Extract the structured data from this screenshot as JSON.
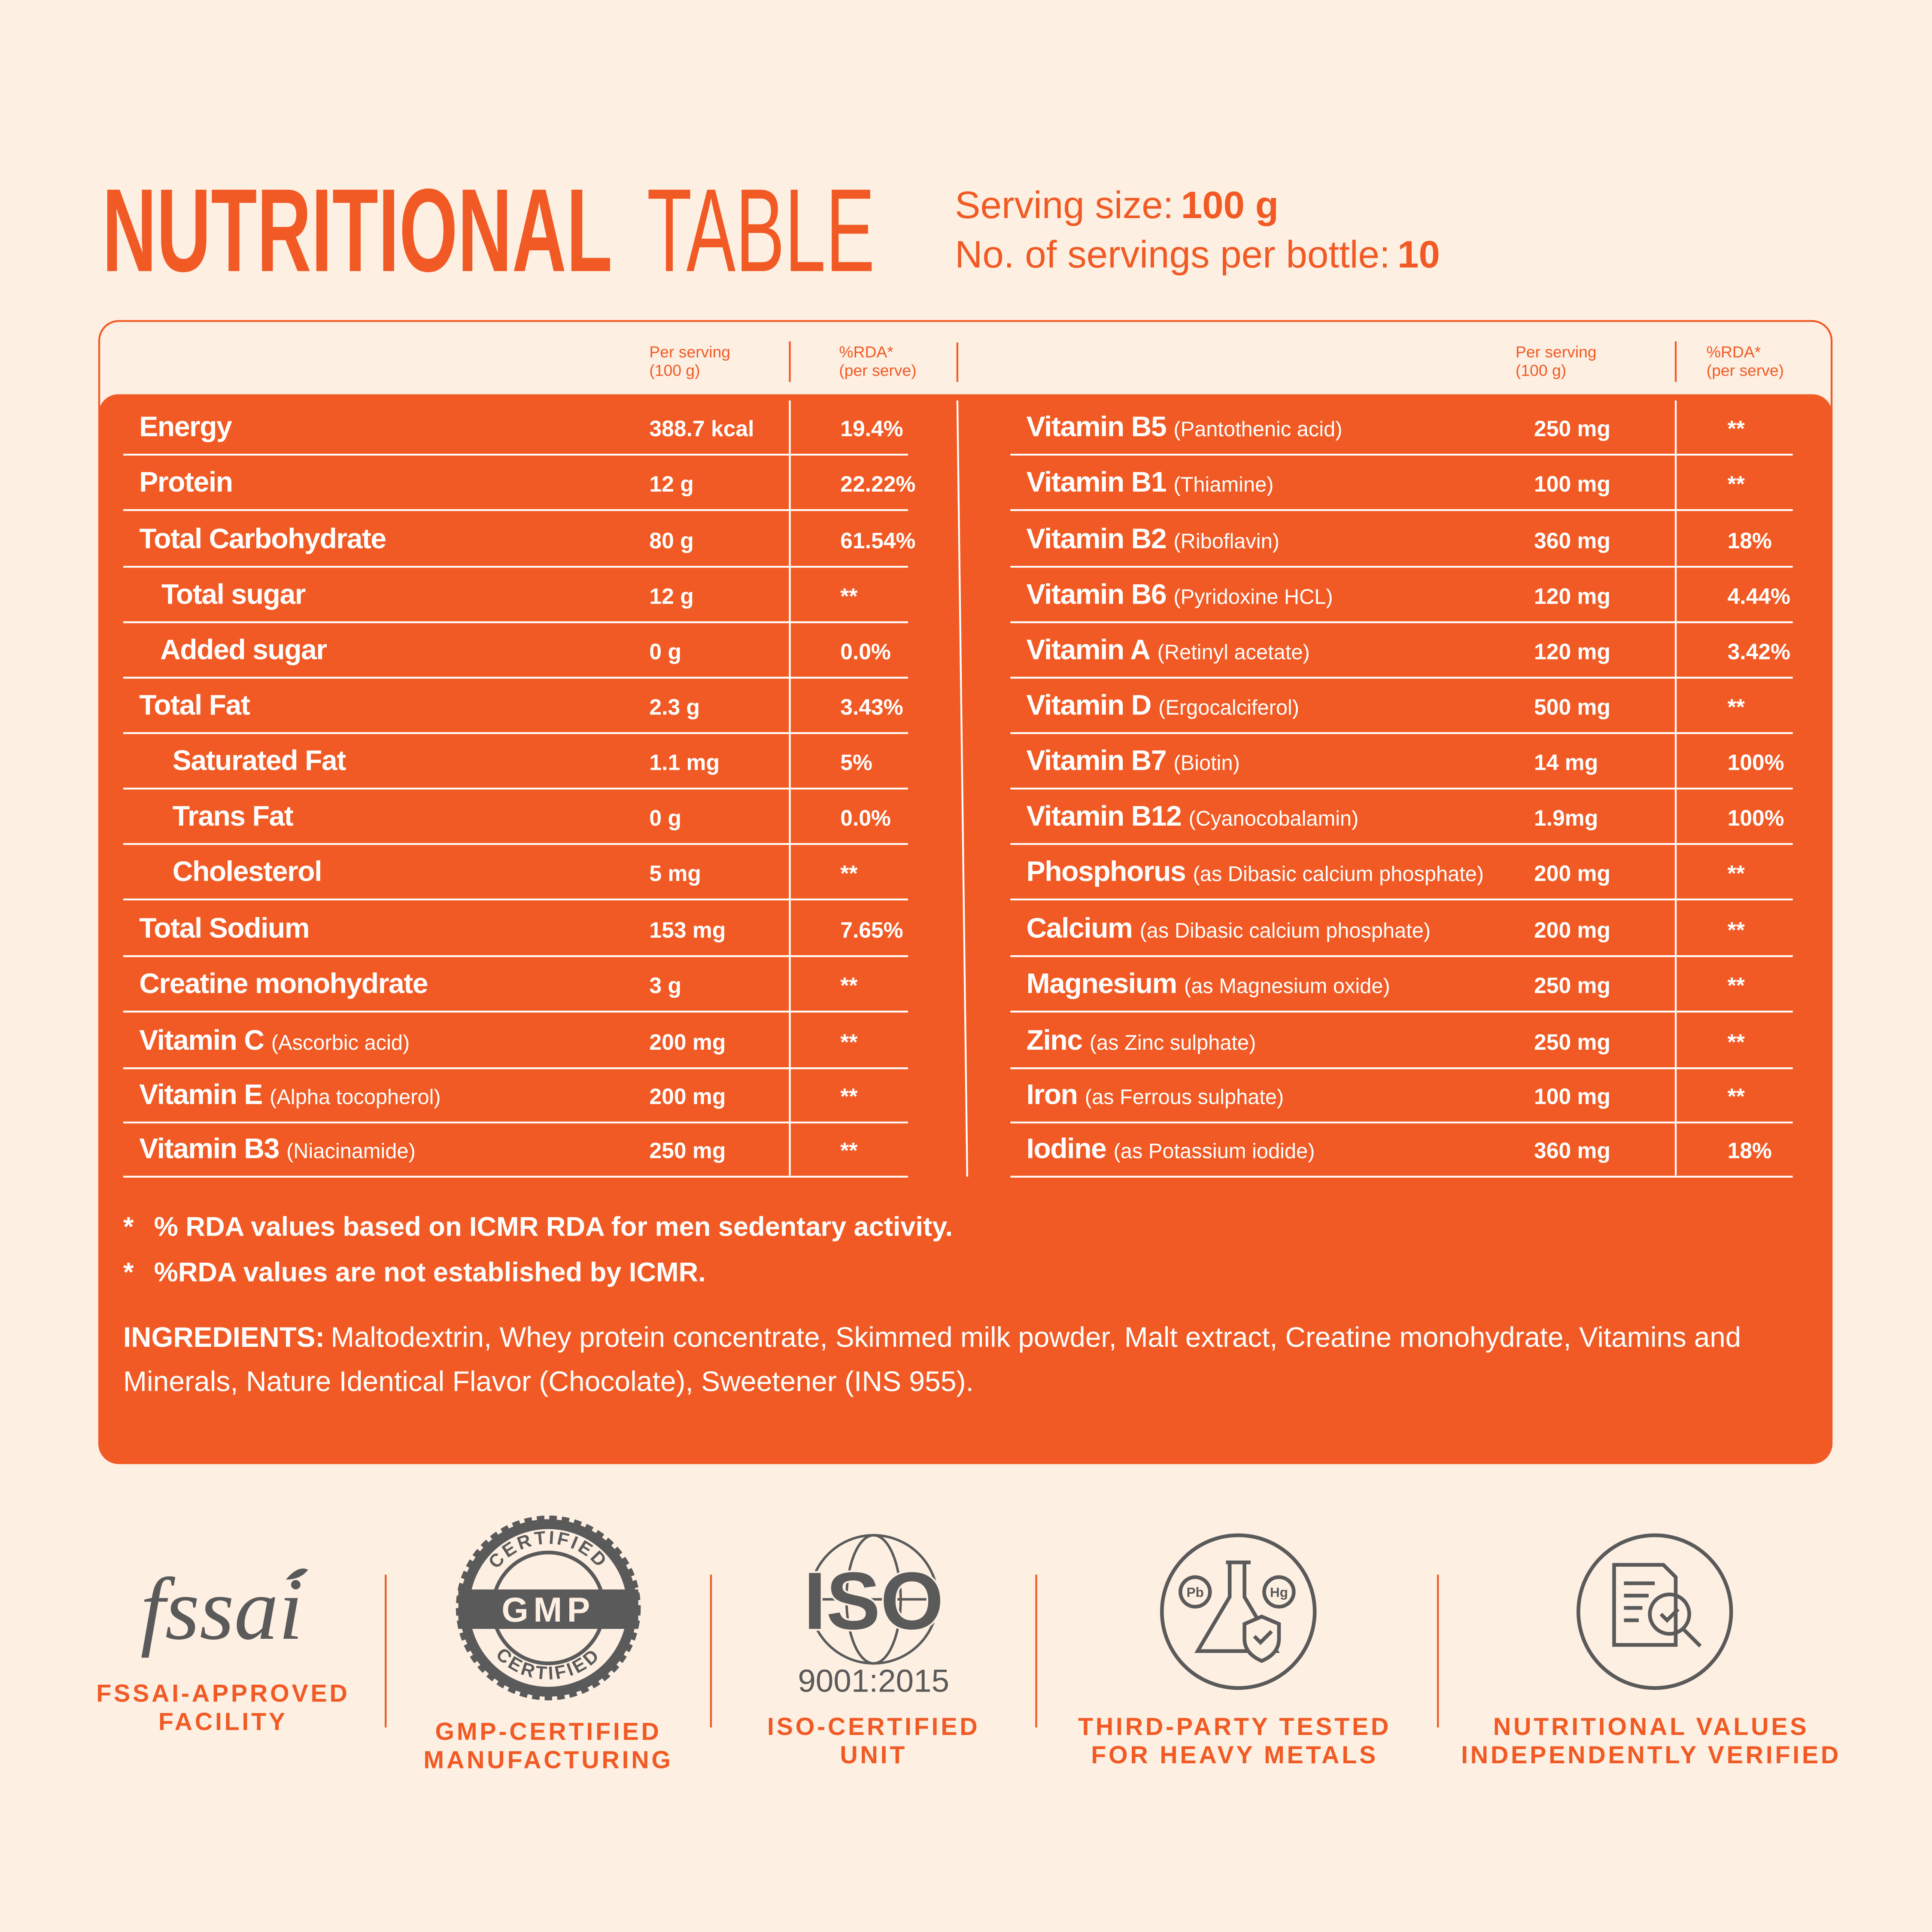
{
  "header": {
    "title_bold": "NUTRITIONAL",
    "title_light": "TABLE",
    "serving_size_label": "Serving size:",
    "serving_size": "100 g",
    "servings_label": "No. of servings per bottle:",
    "servings": "10"
  },
  "table": {
    "column_headers": {
      "per_serving": [
        "Per serving",
        "(100 g)"
      ],
      "rda": [
        "%RDA*",
        "(per serve)"
      ]
    },
    "left_rows": [
      {
        "name": "Energy",
        "amount": "388.7 kcal",
        "rda": "19.4%"
      },
      {
        "name": "Protein",
        "amount": "12 g",
        "rda": "22.22%"
      },
      {
        "name": "Total Carbohydrate",
        "amount": "80 g",
        "rda": "61.54%"
      },
      {
        "name": "Total sugar",
        "amount": "12 g",
        "rda": "**"
      },
      {
        "name": "Added sugar",
        "amount": "0 g",
        "rda": "0.0%"
      },
      {
        "name": "Total Fat",
        "amount": "2.3 g",
        "rda": "3.43%"
      },
      {
        "name": "Saturated Fat",
        "amount": "1.1 mg",
        "rda": "5%"
      },
      {
        "name": "Trans Fat",
        "amount": "0 g",
        "rda": "0.0%"
      },
      {
        "name": "Cholesterol",
        "amount": "5 mg",
        "rda": "**"
      },
      {
        "name": "Total Sodium",
        "amount": "153 mg",
        "rda": "7.65%"
      },
      {
        "name": "Creatine monohydrate",
        "amount": "3 g",
        "rda": "**"
      },
      {
        "name": "Vitamin C",
        "note": "(Ascorbic acid)",
        "amount": "200 mg",
        "rda": "**"
      },
      {
        "name": "Vitamin E",
        "note": "(Alpha tocopherol)",
        "amount": "200 mg",
        "rda": "**"
      },
      {
        "name": "Vitamin B3",
        "note": "(Niacinamide)",
        "amount": "250 mg",
        "rda": "**"
      }
    ],
    "right_rows": [
      {
        "name": "Vitamin B5",
        "note": "(Pantothenic acid)",
        "amount": "250 mg",
        "rda": "**"
      },
      {
        "name": "Vitamin B1",
        "note": "(Thiamine)",
        "amount": "100 mg",
        "rda": "**"
      },
      {
        "name": "Vitamin B2",
        "note": "(Riboflavin)",
        "amount": "360 mg",
        "rda": "18%"
      },
      {
        "name": "Vitamin B6",
        "note": "(Pyridoxine HCL)",
        "amount": "120 mg",
        "rda": "4.44%"
      },
      {
        "name": "Vitamin A",
        "note": "(Retinyl acetate)",
        "amount": "120 mg",
        "rda": "3.42%"
      },
      {
        "name": "Vitamin D",
        "note": "(Ergocalciferol)",
        "amount": "500 mg",
        "rda": "**"
      },
      {
        "name": "Vitamin B7",
        "note": "(Biotin)",
        "amount": "14 mg",
        "rda": "100%"
      },
      {
        "name": "Vitamin B12",
        "note": "(Cyanocobalamin)",
        "amount": "1.9mg",
        "rda": "100%"
      },
      {
        "name": "Phosphorus",
        "note": "(as Dibasic calcium phosphate)",
        "amount": "200 mg",
        "rda": "**"
      },
      {
        "name": "Calcium",
        "note": "(as Dibasic calcium phosphate)",
        "amount": "200 mg",
        "rda": "**"
      },
      {
        "name": "Magnesium",
        "note": "(as Magnesium oxide)",
        "amount": "250 mg",
        "rda": "**"
      },
      {
        "name": "Zinc",
        "note": "(as Zinc sulphate)",
        "amount": "250 mg",
        "rda": "**"
      },
      {
        "name": "Iron",
        "note": "(as Ferrous sulphate)",
        "amount": "100 mg",
        "rda": "**"
      },
      {
        "name": "Iodine",
        "note": "(as Potassium iodide)",
        "amount": "360 mg",
        "rda": "18%"
      }
    ]
  },
  "footnotes": [
    {
      "marker": "*",
      "text": "% RDA values based on ICMR RDA for men sedentary activity."
    },
    {
      "marker": "*",
      "text": "%RDA values are not established by ICMR."
    }
  ],
  "ingredients": {
    "label": "INGREDIENTS:",
    "lines": [
      "Maltodextrin, Whey protein concentrate, Skimmed milk powder, Malt extract, Creatine monohydrate, Vitamins and",
      "Minerals, Nature Identical Flavor (Chocolate), Sweetener (INS 955)."
    ]
  },
  "badges": [
    {
      "icon_text": "fssai",
      "label": [
        "FSSAI-APPROVED",
        "FACILITY"
      ]
    },
    {
      "icon_text": "GMP",
      "arc_text": "CERTIFIED",
      "label": [
        "GMP-CERTIFIED",
        "MANUFACTURING"
      ]
    },
    {
      "icon_text": "ISO",
      "sub_text": "9001:2015",
      "label": [
        "ISO-CERTIFIED",
        "UNIT"
      ]
    },
    {
      "icon_texts": [
        "Pb",
        "Hg"
      ],
      "label": [
        "THIRD-PARTY TESTED",
        "FOR HEAVY METALS"
      ]
    },
    {
      "label": [
        "NUTRITIONAL VALUES",
        "INDEPENDENTLY VERIFIED"
      ]
    }
  ]
}
